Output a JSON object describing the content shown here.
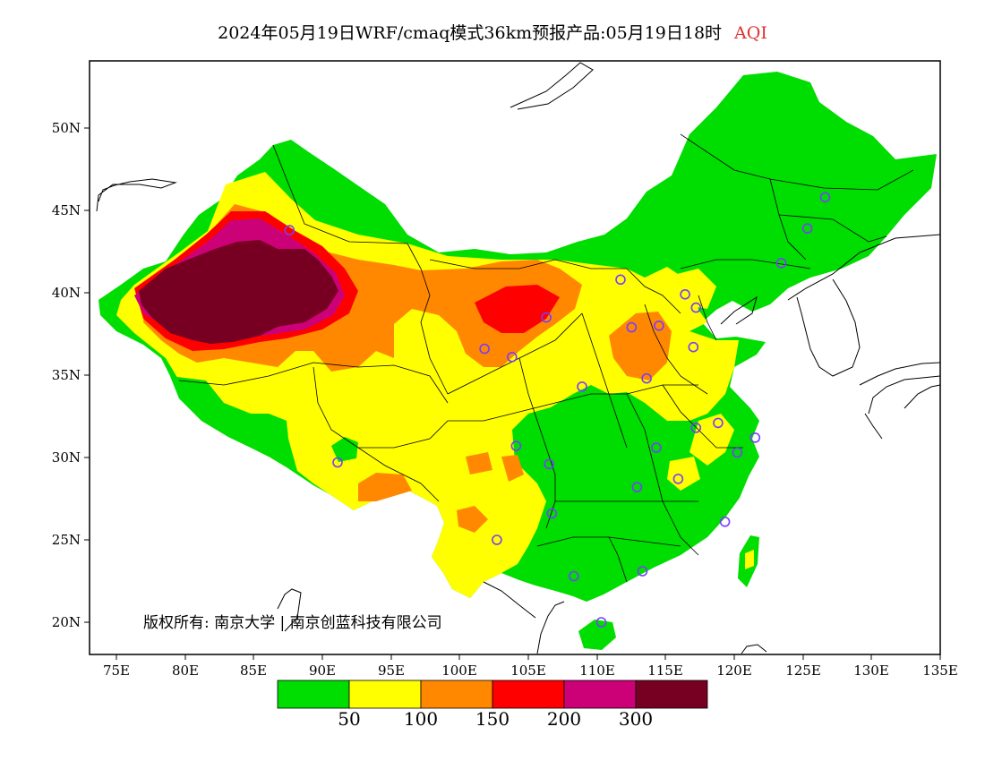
{
  "header": {
    "title_main": "2024年05月19日WRF/cmaq模式36km预报产品:05月19日18时",
    "title_tag": "AQI"
  },
  "axes": {
    "lat_labels": [
      "50N",
      "45N",
      "40N",
      "35N",
      "30N",
      "25N",
      "20N"
    ],
    "lon_labels": [
      "75E",
      "80E",
      "85E",
      "90E",
      "95E",
      "100E",
      "105E",
      "110E",
      "115E",
      "120E",
      "125E",
      "130E",
      "135E"
    ]
  },
  "legend": {
    "colors": [
      "#00dd00",
      "#ffff00",
      "#ff8800",
      "#ff0000",
      "#cc0077",
      "#770022"
    ],
    "labels": [
      "50",
      "100",
      "150",
      "200",
      "300"
    ]
  },
  "map": {
    "copyright": "版权所有: 南京大学 | 南京创蓝科技有限公司",
    "stations": [
      [
        87.6,
        43.8
      ],
      [
        91.1,
        29.7
      ],
      [
        101.8,
        36.6
      ],
      [
        103.8,
        36.1
      ],
      [
        104.1,
        30.7
      ],
      [
        106.5,
        29.6
      ],
      [
        106.7,
        26.6
      ],
      [
        102.7,
        25.0
      ],
      [
        108.3,
        22.8
      ],
      [
        110.3,
        20.0
      ],
      [
        113.3,
        23.1
      ],
      [
        112.9,
        28.2
      ],
      [
        114.3,
        30.6
      ],
      [
        115.9,
        28.7
      ],
      [
        117.2,
        31.8
      ],
      [
        118.8,
        32.1
      ],
      [
        120.2,
        30.3
      ],
      [
        119.3,
        26.1
      ],
      [
        121.5,
        31.2
      ],
      [
        113.6,
        34.8
      ],
      [
        117.0,
        36.7
      ],
      [
        114.5,
        38.0
      ],
      [
        112.5,
        37.9
      ],
      [
        111.7,
        40.8
      ],
      [
        116.4,
        39.9
      ],
      [
        117.2,
        39.1
      ],
      [
        106.3,
        38.5
      ],
      [
        108.9,
        34.3
      ],
      [
        123.4,
        41.8
      ],
      [
        125.3,
        43.9
      ],
      [
        126.6,
        45.8
      ]
    ]
  }
}
